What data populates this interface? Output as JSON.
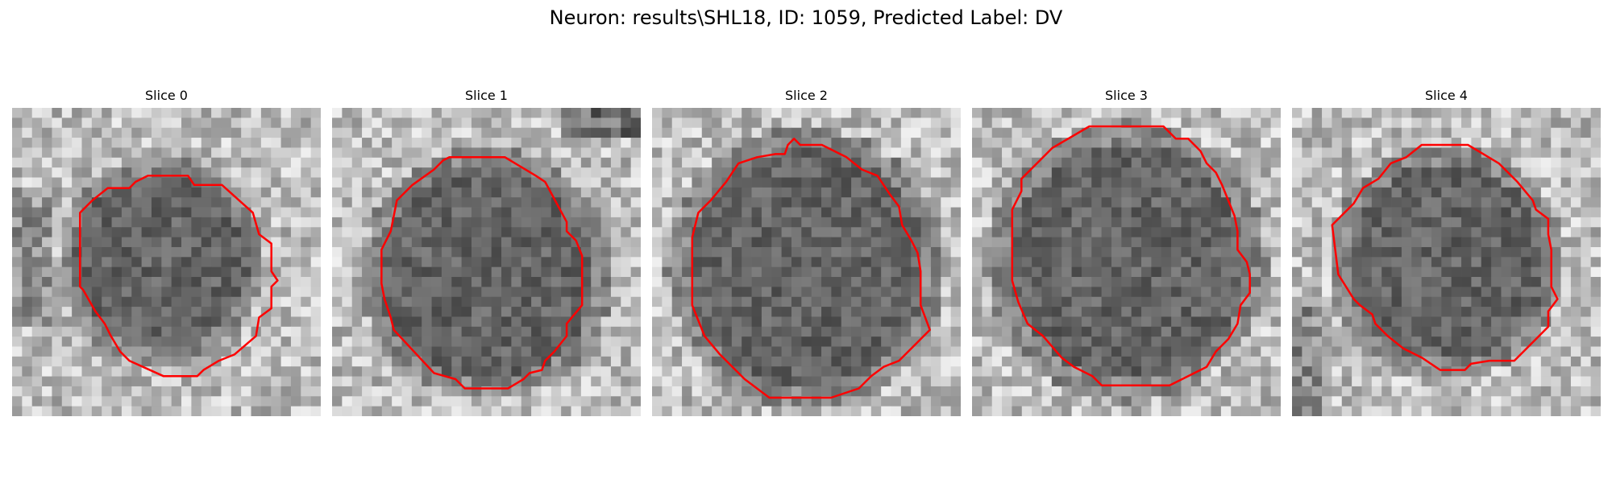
{
  "suptitle": "Neuron: results\\SHL18, ID: 1059, Predicted Label: DV",
  "contour_color": "#ff0000",
  "colormap": "grayscale",
  "panels": [
    {
      "title": "Slice 0"
    },
    {
      "title": "Slice 1"
    },
    {
      "title": "Slice 2"
    },
    {
      "title": "Slice 3"
    },
    {
      "title": "Slice 4"
    }
  ]
}
